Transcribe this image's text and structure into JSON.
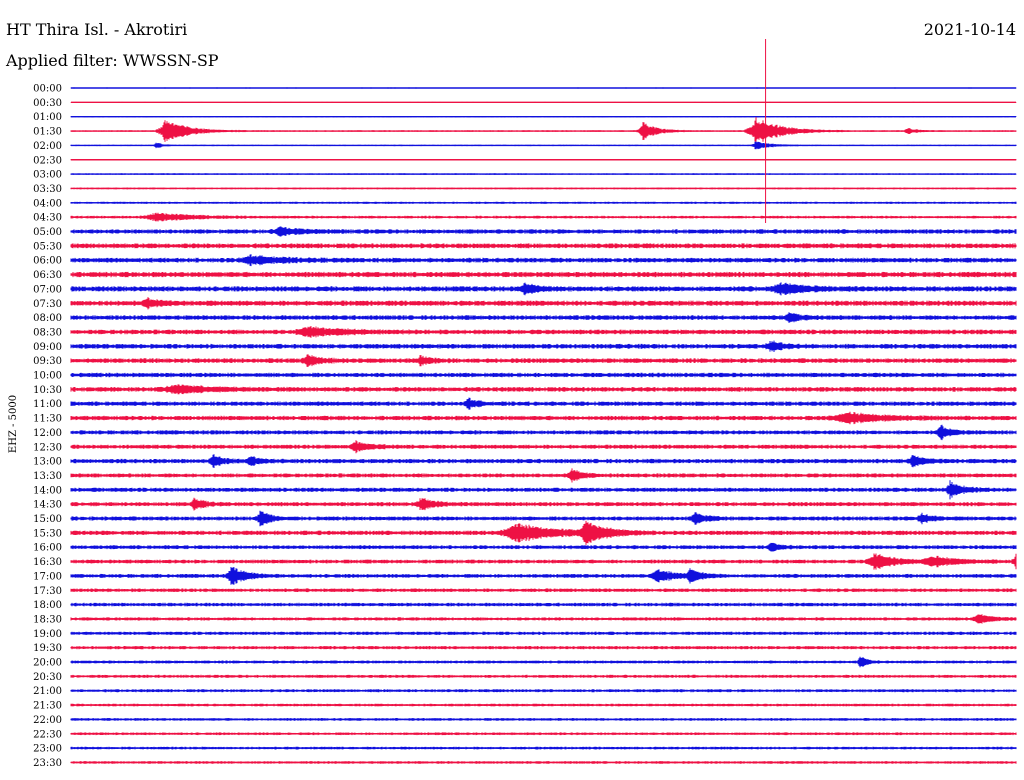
{
  "header": {
    "title": "HT Thira Isl. - Akrotiri",
    "date": "2021-10-14",
    "filter_label": "Applied filter: WWSSN-SP"
  },
  "colors": {
    "even": "#1010dd",
    "odd": "#ee1144"
  },
  "chart_data": {
    "type": "line",
    "title": "HT Thira Isl. - Akrotiri",
    "ylabel": "EHZ - 5000",
    "rows": [
      "00:00",
      "00:30",
      "01:00",
      "01:30",
      "02:00",
      "02:30",
      "03:00",
      "03:30",
      "04:00",
      "04:30",
      "05:00",
      "05:30",
      "06:00",
      "06:30",
      "07:00",
      "07:30",
      "08:00",
      "08:30",
      "09:00",
      "09:30",
      "10:00",
      "10:30",
      "11:00",
      "11:30",
      "12:00",
      "12:30",
      "13:00",
      "13:30",
      "14:00",
      "14:30",
      "15:00",
      "15:30",
      "16:00",
      "16:30",
      "17:00",
      "17:30",
      "18:00",
      "18:30",
      "19:00",
      "19:30",
      "20:00",
      "20:30",
      "21:00",
      "21:30",
      "22:00",
      "22:30",
      "23:00",
      "23:30"
    ],
    "row_minutes": 30,
    "noise_level": [
      0.4,
      0.3,
      0.5,
      0.6,
      0.5,
      0.5,
      0.6,
      0.7,
      0.8,
      1.0,
      1.6,
      1.8,
      1.7,
      1.9,
      1.9,
      1.9,
      1.7,
      1.7,
      1.7,
      1.7,
      1.6,
      1.7,
      1.6,
      1.6,
      1.5,
      1.5,
      1.6,
      1.5,
      1.5,
      1.5,
      1.5,
      1.6,
      1.4,
      1.4,
      1.4,
      1.3,
      1.3,
      1.2,
      1.2,
      1.2,
      1.1,
      1.1,
      1.1,
      1.0,
      1.0,
      1.0,
      1.0,
      1.0
    ],
    "events": [
      {
        "row": 3,
        "x": 0.1,
        "amp": 12,
        "width": 0.035
      },
      {
        "row": 3,
        "x": 0.605,
        "amp": 9,
        "width": 0.022
      },
      {
        "row": 3,
        "x": 0.725,
        "amp": 14,
        "width": 0.04
      },
      {
        "row": 3,
        "x": 0.885,
        "amp": 3,
        "width": 0.015
      },
      {
        "row": 4,
        "x": 0.09,
        "amp": 3,
        "width": 0.01
      },
      {
        "row": 4,
        "x": 0.725,
        "amp": 5,
        "width": 0.02
      },
      {
        "row": 9,
        "x": 0.09,
        "amp": 4,
        "width": 0.06
      },
      {
        "row": 10,
        "x": 0.22,
        "amp": 4,
        "width": 0.03
      },
      {
        "row": 12,
        "x": 0.19,
        "amp": 4,
        "width": 0.05
      },
      {
        "row": 14,
        "x": 0.48,
        "amp": 5,
        "width": 0.02
      },
      {
        "row": 14,
        "x": 0.75,
        "amp": 5,
        "width": 0.04
      },
      {
        "row": 15,
        "x": 0.08,
        "amp": 4,
        "width": 0.02
      },
      {
        "row": 16,
        "x": 0.76,
        "amp": 5,
        "width": 0.015
      },
      {
        "row": 17,
        "x": 0.25,
        "amp": 5,
        "width": 0.05
      },
      {
        "row": 18,
        "x": 0.74,
        "amp": 5,
        "width": 0.02
      },
      {
        "row": 19,
        "x": 0.25,
        "amp": 5,
        "width": 0.02
      },
      {
        "row": 19,
        "x": 0.37,
        "amp": 5,
        "width": 0.015
      },
      {
        "row": 21,
        "x": 0.11,
        "amp": 4,
        "width": 0.05
      },
      {
        "row": 22,
        "x": 0.42,
        "amp": 5,
        "width": 0.015
      },
      {
        "row": 23,
        "x": 0.82,
        "amp": 5,
        "width": 0.06
      },
      {
        "row": 24,
        "x": 0.92,
        "amp": 7,
        "width": 0.015
      },
      {
        "row": 25,
        "x": 0.3,
        "amp": 6,
        "width": 0.02
      },
      {
        "row": 26,
        "x": 0.15,
        "amp": 6,
        "width": 0.015
      },
      {
        "row": 26,
        "x": 0.19,
        "amp": 5,
        "width": 0.015
      },
      {
        "row": 26,
        "x": 0.89,
        "amp": 7,
        "width": 0.015
      },
      {
        "row": 27,
        "x": 0.53,
        "amp": 6,
        "width": 0.015
      },
      {
        "row": 28,
        "x": 0.93,
        "amp": 8,
        "width": 0.02
      },
      {
        "row": 29,
        "x": 0.13,
        "amp": 6,
        "width": 0.015
      },
      {
        "row": 29,
        "x": 0.37,
        "amp": 6,
        "width": 0.02
      },
      {
        "row": 30,
        "x": 0.2,
        "amp": 8,
        "width": 0.015
      },
      {
        "row": 30,
        "x": 0.66,
        "amp": 5,
        "width": 0.02
      },
      {
        "row": 30,
        "x": 0.9,
        "amp": 5,
        "width": 0.015
      },
      {
        "row": 31,
        "x": 0.47,
        "amp": 9,
        "width": 0.06
      },
      {
        "row": 31,
        "x": 0.545,
        "amp": 11,
        "width": 0.03
      },
      {
        "row": 32,
        "x": 0.74,
        "amp": 4,
        "width": 0.015
      },
      {
        "row": 33,
        "x": 0.85,
        "amp": 8,
        "width": 0.03
      },
      {
        "row": 33,
        "x": 0.91,
        "amp": 5,
        "width": 0.04
      },
      {
        "row": 33,
        "x": 1.0,
        "amp": 7,
        "width": 0.015
      },
      {
        "row": 34,
        "x": 0.17,
        "amp": 10,
        "width": 0.02
      },
      {
        "row": 34,
        "x": 0.62,
        "amp": 6,
        "width": 0.03
      },
      {
        "row": 34,
        "x": 0.655,
        "amp": 7,
        "width": 0.015
      },
      {
        "row": 37,
        "x": 0.96,
        "amp": 5,
        "width": 0.02
      },
      {
        "row": 40,
        "x": 0.835,
        "amp": 7,
        "width": 0.01
      }
    ],
    "spike": {
      "row": 3,
      "x": 0.735,
      "up": 92,
      "down": 92
    }
  }
}
